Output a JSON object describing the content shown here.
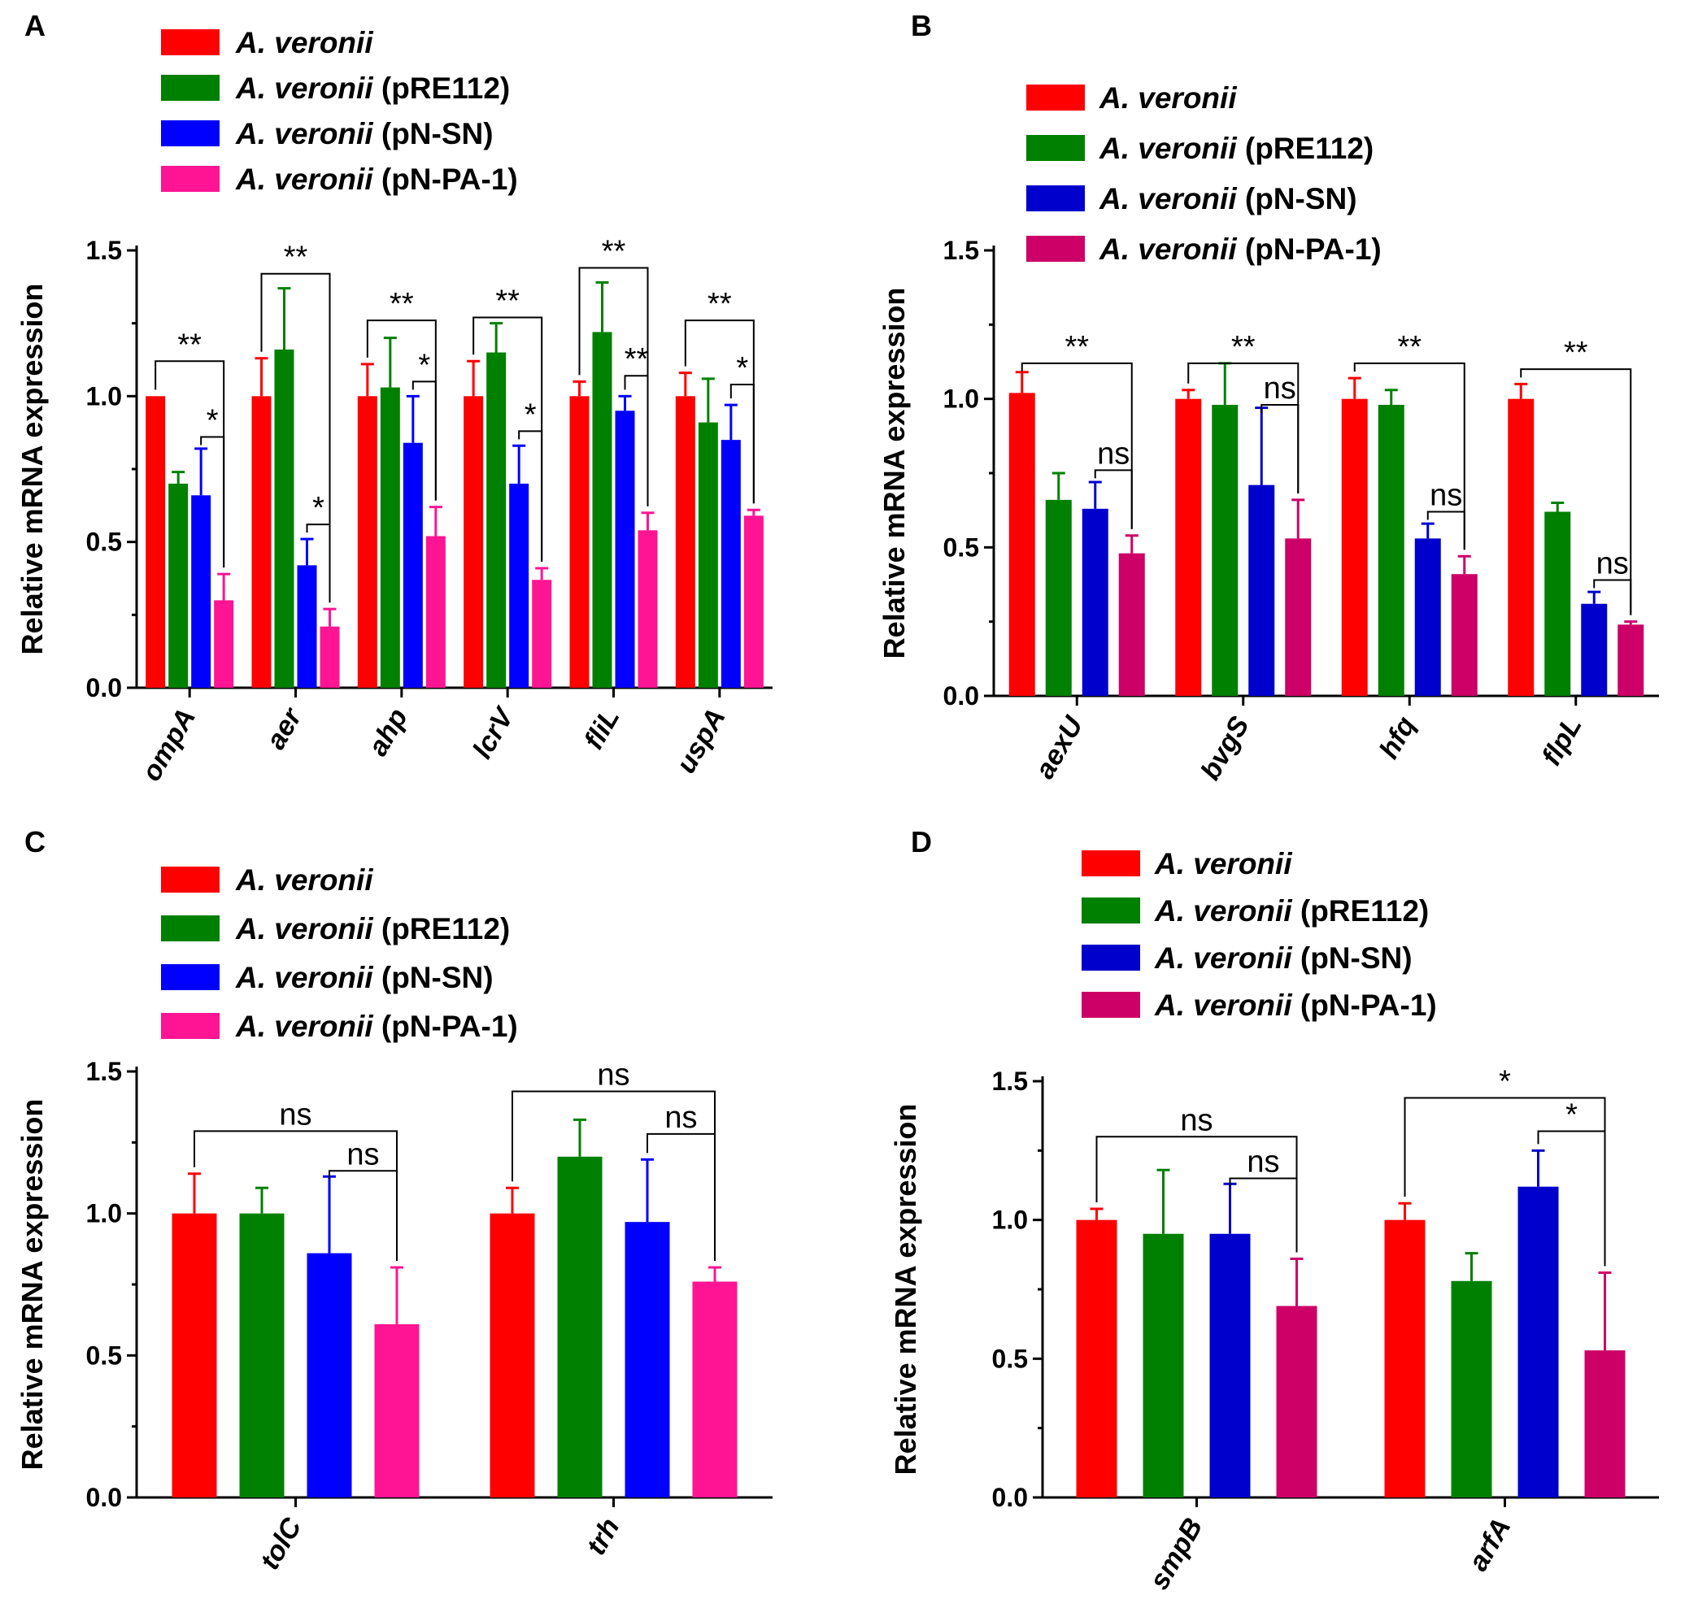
{
  "figure": {
    "legend": {
      "strain": "A. veronii",
      "labels": [
        "A. veronii",
        "A. veronii (pRE112)",
        "A. veronii (pN-SN)",
        "A. veronii (pN-PA-1)"
      ],
      "suffixes": [
        "",
        " (pRE112)",
        " (pN-SN)",
        " (pN-PA-1)"
      ]
    },
    "palettes": {
      "bright": [
        "#ff0000",
        "#008000",
        "#0000ff",
        "#ff1493"
      ],
      "dark": [
        "#ff0000",
        "#008000",
        "#0000cc",
        "#cc0066"
      ]
    }
  },
  "chart_data": [
    {
      "panel": "A",
      "type": "bar",
      "palette": "bright",
      "ylabel": "Relative mRNA expression",
      "ylim": [
        0,
        1.5
      ],
      "yticks": [
        "0.0",
        "0.5",
        "1.0",
        "1.5"
      ],
      "categories": [
        "ompA",
        "aer",
        "ahp",
        "lcrV",
        "fliL",
        "uspA"
      ],
      "series": [
        {
          "name": "A. veronii",
          "values": [
            1.0,
            1.0,
            1.0,
            1.0,
            1.0,
            1.0
          ],
          "errors": [
            0.0,
            0.13,
            0.11,
            0.12,
            0.05,
            0.08
          ]
        },
        {
          "name": "A. veronii (pRE112)",
          "values": [
            0.7,
            1.16,
            1.03,
            1.15,
            1.22,
            0.91
          ],
          "errors": [
            0.04,
            0.21,
            0.17,
            0.1,
            0.17,
            0.15
          ]
        },
        {
          "name": "A. veronii (pN-SN)",
          "values": [
            0.66,
            0.42,
            0.84,
            0.7,
            0.95,
            0.85
          ],
          "errors": [
            0.16,
            0.09,
            0.16,
            0.13,
            0.05,
            0.12
          ]
        },
        {
          "name": "A. veronii (pN-PA-1)",
          "values": [
            0.3,
            0.21,
            0.52,
            0.37,
            0.54,
            0.59
          ],
          "errors": [
            0.09,
            0.06,
            0.1,
            0.04,
            0.06,
            0.02
          ]
        }
      ],
      "comparisons": [
        {
          "category": 0,
          "from": 0,
          "to": 3,
          "label": "**",
          "y": 1.12
        },
        {
          "category": 0,
          "from": 2,
          "to": 3,
          "label": "*",
          "y": 0.86
        },
        {
          "category": 1,
          "from": 0,
          "to": 3,
          "label": "**",
          "y": 1.42
        },
        {
          "category": 1,
          "from": 2,
          "to": 3,
          "label": "*",
          "y": 0.56
        },
        {
          "category": 2,
          "from": 0,
          "to": 3,
          "label": "**",
          "y": 1.26
        },
        {
          "category": 2,
          "from": 2,
          "to": 3,
          "label": "*",
          "y": 1.05
        },
        {
          "category": 3,
          "from": 0,
          "to": 3,
          "label": "**",
          "y": 1.27
        },
        {
          "category": 3,
          "from": 2,
          "to": 3,
          "label": "*",
          "y": 0.88
        },
        {
          "category": 4,
          "from": 0,
          "to": 3,
          "label": "**",
          "y": 1.44
        },
        {
          "category": 4,
          "from": 2,
          "to": 3,
          "label": "**",
          "y": 1.07
        },
        {
          "category": 5,
          "from": 0,
          "to": 3,
          "label": "**",
          "y": 1.26
        },
        {
          "category": 5,
          "from": 2,
          "to": 3,
          "label": "*",
          "y": 1.04
        }
      ]
    },
    {
      "panel": "B",
      "type": "bar",
      "palette": "dark",
      "ylabel": "Relative mRNA expression",
      "ylim": [
        0,
        1.5
      ],
      "yticks": [
        "0.0",
        "0.5",
        "1.0",
        "1.5"
      ],
      "categories": [
        "aexU",
        "bvgS",
        "hfq",
        "flpL"
      ],
      "series": [
        {
          "name": "A. veronii",
          "values": [
            1.02,
            1.0,
            1.0,
            1.0
          ],
          "errors": [
            0.07,
            0.03,
            0.07,
            0.05
          ]
        },
        {
          "name": "A. veronii (pRE112)",
          "values": [
            0.66,
            0.98,
            0.98,
            0.62
          ],
          "errors": [
            0.09,
            0.14,
            0.05,
            0.03
          ]
        },
        {
          "name": "A. veronii (pN-SN)",
          "values": [
            0.63,
            0.71,
            0.53,
            0.31
          ],
          "errors": [
            0.09,
            0.26,
            0.05,
            0.04
          ]
        },
        {
          "name": "A. veronii (pN-PA-1)",
          "values": [
            0.48,
            0.53,
            0.41,
            0.24
          ],
          "errors": [
            0.06,
            0.13,
            0.06,
            0.01
          ]
        }
      ],
      "comparisons": [
        {
          "category": 0,
          "from": 0,
          "to": 3,
          "label": "**",
          "y": 1.12
        },
        {
          "category": 0,
          "from": 2,
          "to": 3,
          "label": "ns",
          "y": 0.76
        },
        {
          "category": 1,
          "from": 0,
          "to": 3,
          "label": "**",
          "y": 1.12
        },
        {
          "category": 1,
          "from": 2,
          "to": 3,
          "label": "ns",
          "y": 0.98
        },
        {
          "category": 2,
          "from": 0,
          "to": 3,
          "label": "**",
          "y": 1.12
        },
        {
          "category": 2,
          "from": 2,
          "to": 3,
          "label": "ns",
          "y": 0.62
        },
        {
          "category": 3,
          "from": 0,
          "to": 3,
          "label": "**",
          "y": 1.1
        },
        {
          "category": 3,
          "from": 2,
          "to": 3,
          "label": "ns",
          "y": 0.39
        }
      ]
    },
    {
      "panel": "C",
      "type": "bar",
      "palette": "bright",
      "ylabel": "Relative mRNA expression",
      "ylim": [
        0,
        1.5
      ],
      "yticks": [
        "0.0",
        "0.5",
        "1.0",
        "1.5"
      ],
      "categories": [
        "tolC",
        "trh"
      ],
      "series": [
        {
          "name": "A. veronii",
          "values": [
            1.0,
            1.0
          ],
          "errors": [
            0.14,
            0.09
          ]
        },
        {
          "name": "A. veronii (pRE112)",
          "values": [
            1.0,
            1.2
          ],
          "errors": [
            0.09,
            0.13
          ]
        },
        {
          "name": "A. veronii (pN-SN)",
          "values": [
            0.86,
            0.97
          ],
          "errors": [
            0.27,
            0.22
          ]
        },
        {
          "name": "A. veronii (pN-PA-1)",
          "values": [
            0.61,
            0.76
          ],
          "errors": [
            0.2,
            0.05
          ]
        }
      ],
      "comparisons": [
        {
          "category": 0,
          "from": 0,
          "to": 3,
          "label": "ns",
          "y": 1.29
        },
        {
          "category": 0,
          "from": 2,
          "to": 3,
          "label": "ns",
          "y": 1.15
        },
        {
          "category": 1,
          "from": 0,
          "to": 3,
          "label": "ns",
          "y": 1.43
        },
        {
          "category": 1,
          "from": 2,
          "to": 3,
          "label": "ns",
          "y": 1.28
        }
      ]
    },
    {
      "panel": "D",
      "type": "bar",
      "palette": "dark",
      "ylabel": "Relative mRNA expression",
      "ylim": [
        0,
        1.5
      ],
      "yticks": [
        "0.0",
        "0.5",
        "1.0",
        "1.5"
      ],
      "categories": [
        "smpB",
        "arfA"
      ],
      "series": [
        {
          "name": "A. veronii",
          "values": [
            1.0,
            1.0
          ],
          "errors": [
            0.04,
            0.06
          ]
        },
        {
          "name": "A. veronii (pRE112)",
          "values": [
            0.95,
            0.78
          ],
          "errors": [
            0.23,
            0.1
          ]
        },
        {
          "name": "A. veronii (pN-SN)",
          "values": [
            0.95,
            1.12
          ],
          "errors": [
            0.18,
            0.13
          ]
        },
        {
          "name": "A. veronii (pN-PA-1)",
          "values": [
            0.69,
            0.53
          ],
          "errors": [
            0.17,
            0.28
          ]
        }
      ],
      "comparisons": [
        {
          "category": 0,
          "from": 0,
          "to": 3,
          "label": "ns",
          "y": 1.3
        },
        {
          "category": 0,
          "from": 2,
          "to": 3,
          "label": "ns",
          "y": 1.15
        },
        {
          "category": 1,
          "from": 0,
          "to": 3,
          "label": "*",
          "y": 1.44
        },
        {
          "category": 1,
          "from": 2,
          "to": 3,
          "label": "*",
          "y": 1.32
        }
      ]
    }
  ]
}
